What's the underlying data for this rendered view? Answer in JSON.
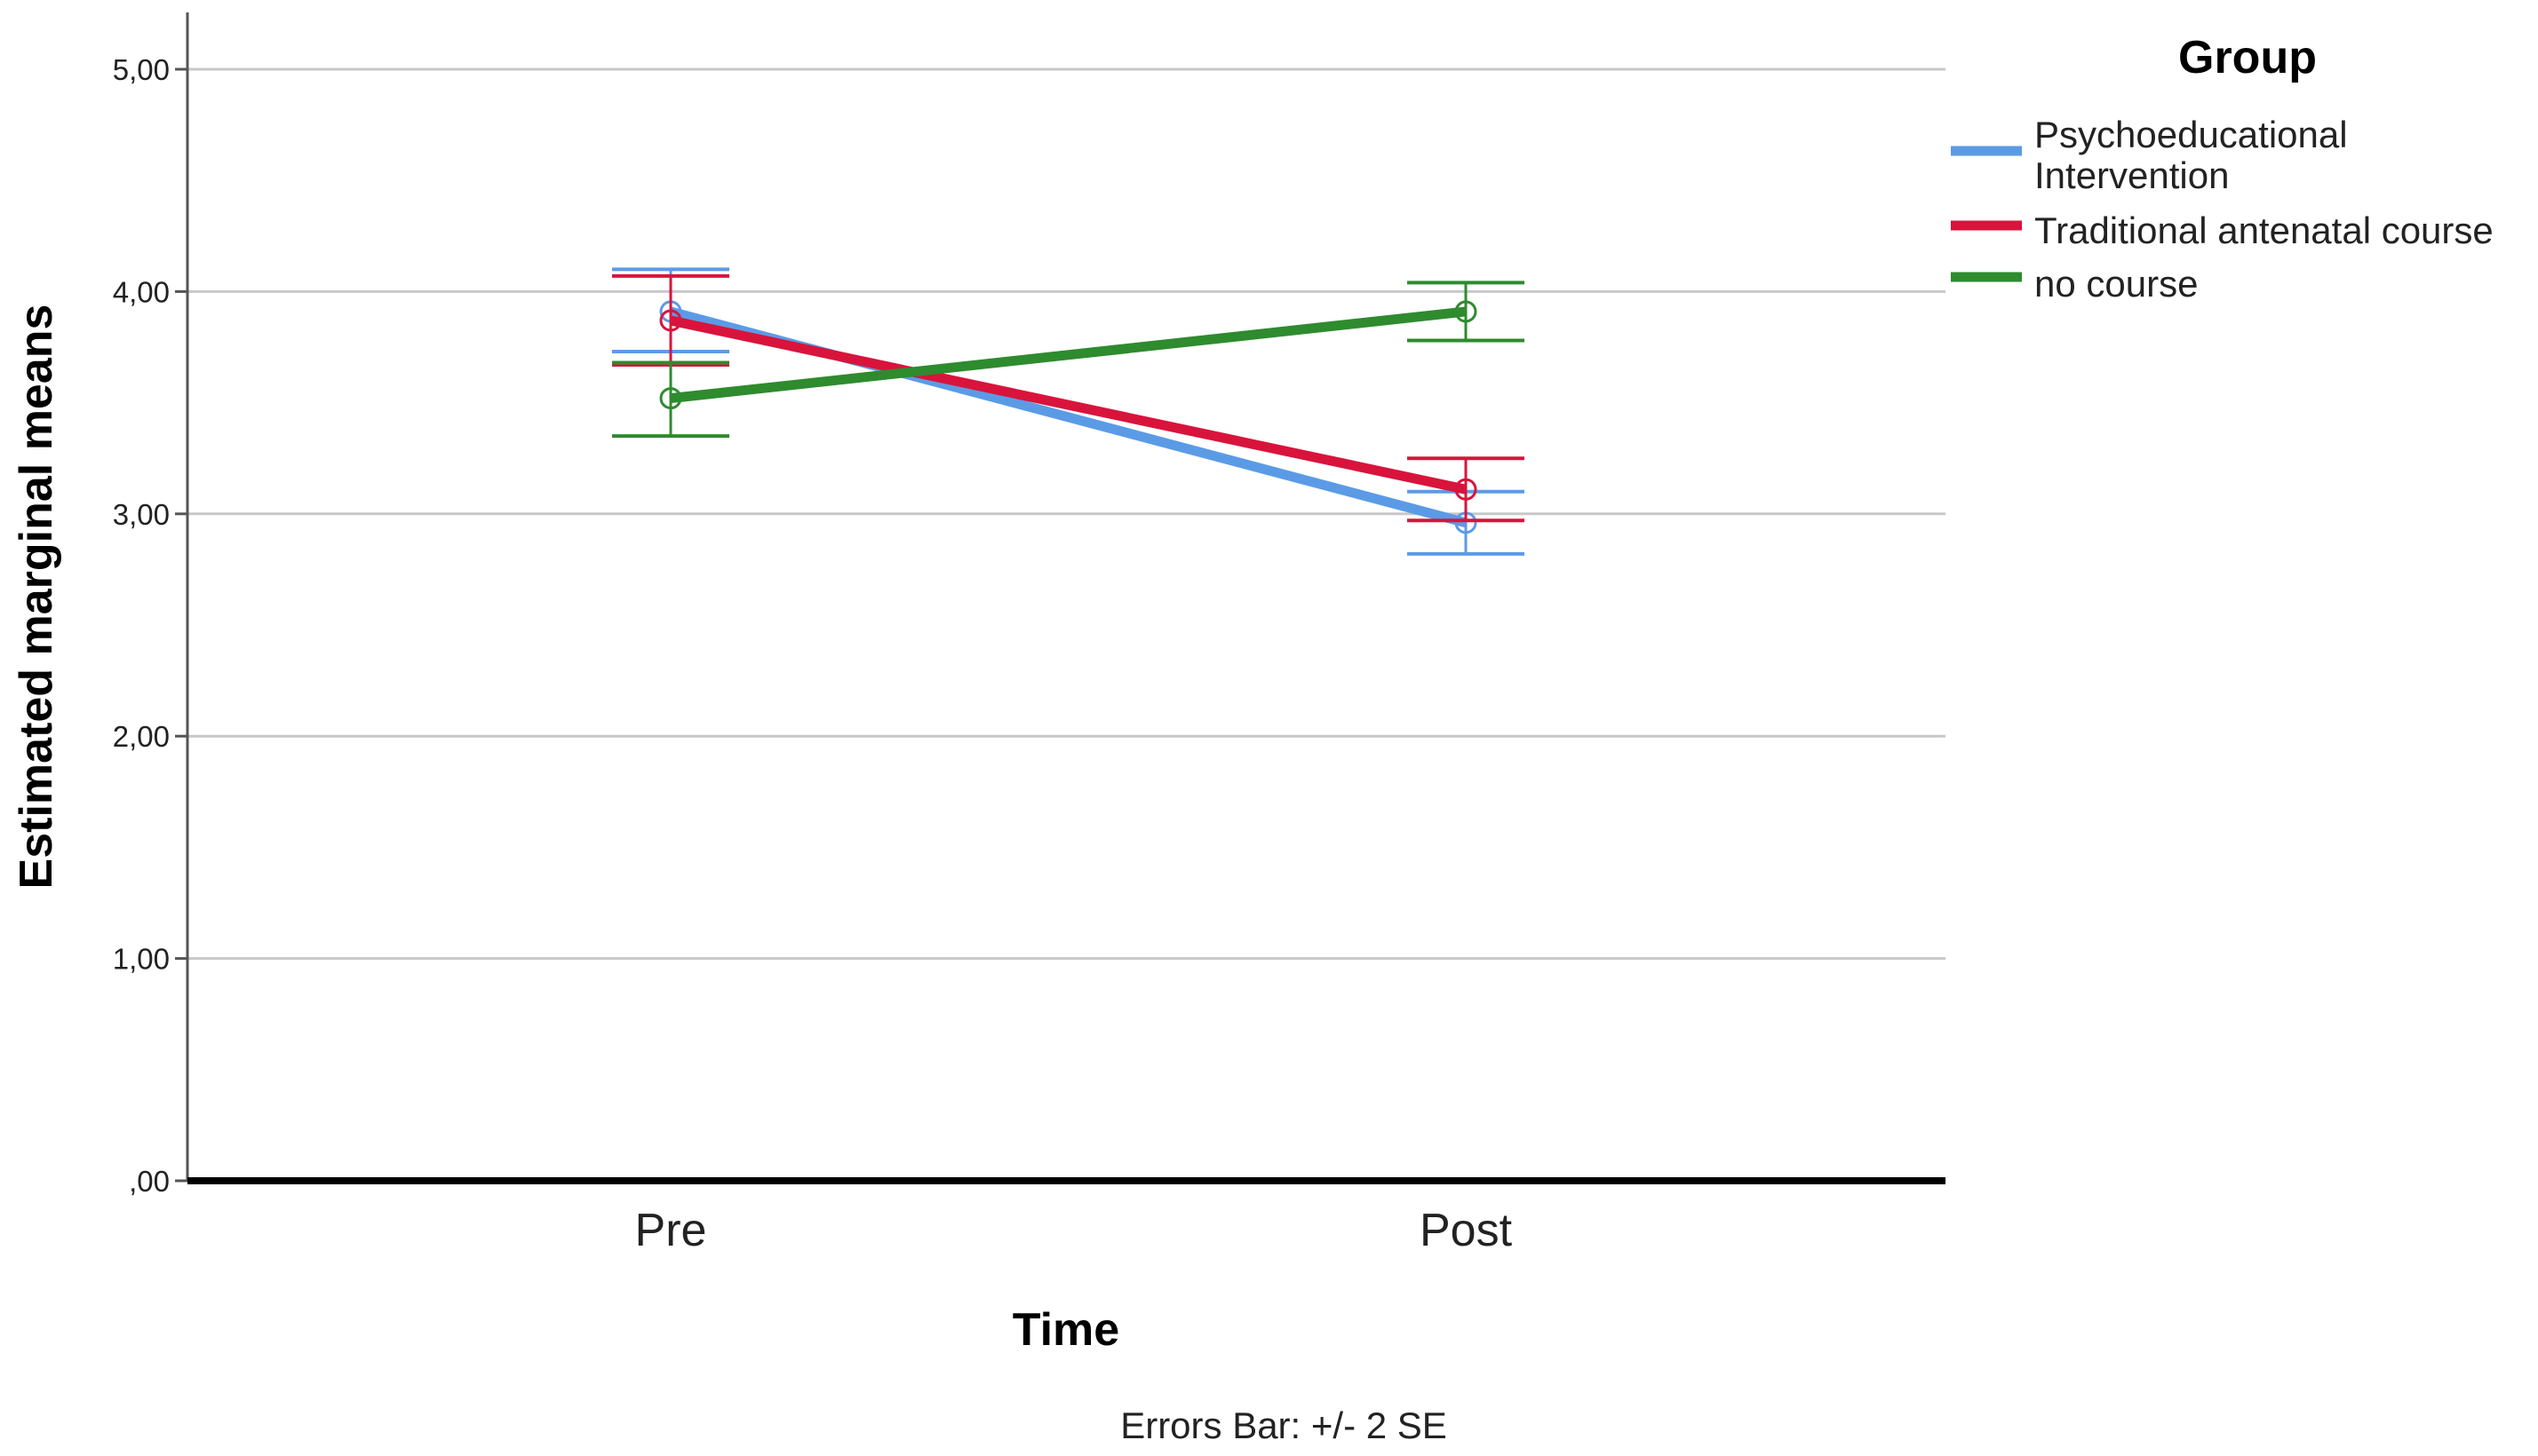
{
  "chart_data": {
    "type": "line",
    "ylabel": "Estimated marginal means",
    "xlabel": "Time",
    "legend_title": "Group",
    "legend_placement": "top-right",
    "categories": [
      "Pre",
      "Post"
    ],
    "ylim": [
      0,
      5
    ],
    "yticks": [
      0,
      1,
      2,
      3,
      4,
      5
    ],
    "ytick_labels": [
      ",00",
      "1,00",
      "2,00",
      "3,00",
      "4,00",
      "5,00"
    ],
    "grid": true,
    "footnote": "Errors Bar: +/- 2 SE",
    "series": [
      {
        "name": "Psychoeducational Intervention",
        "name_lines": [
          "Psychoeducational",
          "Intervention"
        ],
        "color": "#5b9be6",
        "values": [
          3.91,
          2.96
        ],
        "err_low": [
          3.73,
          2.82
        ],
        "err_high": [
          4.1,
          3.1
        ]
      },
      {
        "name": "Traditional antenatal course",
        "name_lines": [
          "Traditional antenatal course"
        ],
        "color": "#d8143c",
        "values": [
          3.87,
          3.11
        ],
        "err_low": [
          3.67,
          2.97
        ],
        "err_high": [
          4.07,
          3.25
        ]
      },
      {
        "name": "no course",
        "name_lines": [
          "no course"
        ],
        "color": "#2e8b2e",
        "values": [
          3.52,
          3.91
        ],
        "err_low": [
          3.35,
          3.78
        ],
        "err_high": [
          3.68,
          4.04
        ]
      }
    ]
  }
}
